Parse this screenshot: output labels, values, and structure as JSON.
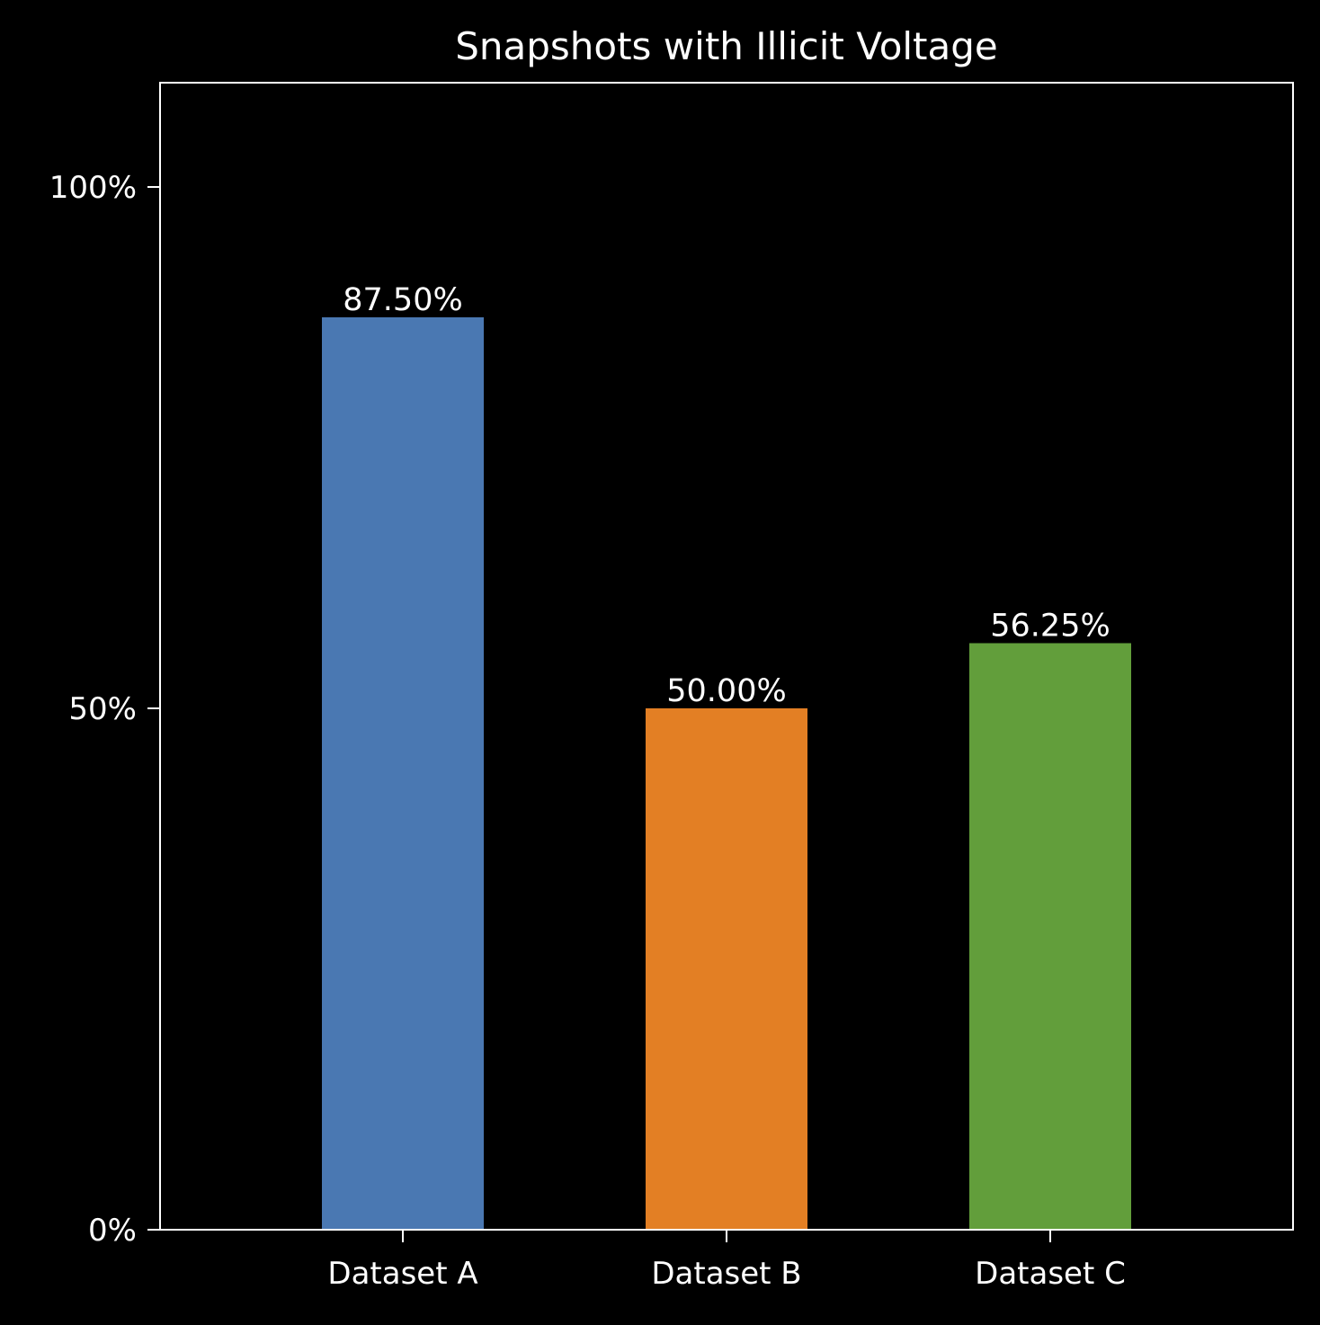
{
  "chart_data": {
    "type": "bar",
    "title": "Snapshots with Illicit Voltage",
    "xlabel": "",
    "ylabel": "",
    "categories": [
      "Dataset A",
      "Dataset B",
      "Dataset C"
    ],
    "values": [
      87.5,
      50.0,
      56.25
    ],
    "value_labels": [
      "87.50%",
      "50.00%",
      "56.25%"
    ],
    "colors": [
      "#4a78b2",
      "#e37f24",
      "#629e3b"
    ],
    "ylim": [
      0,
      110
    ],
    "yticks": [
      0,
      50,
      100
    ],
    "ytick_labels": [
      "0%",
      "50%",
      "100%"
    ],
    "grid": false,
    "legend": "none"
  },
  "theme": {
    "background": "#000000",
    "foreground": "#ffffff"
  }
}
